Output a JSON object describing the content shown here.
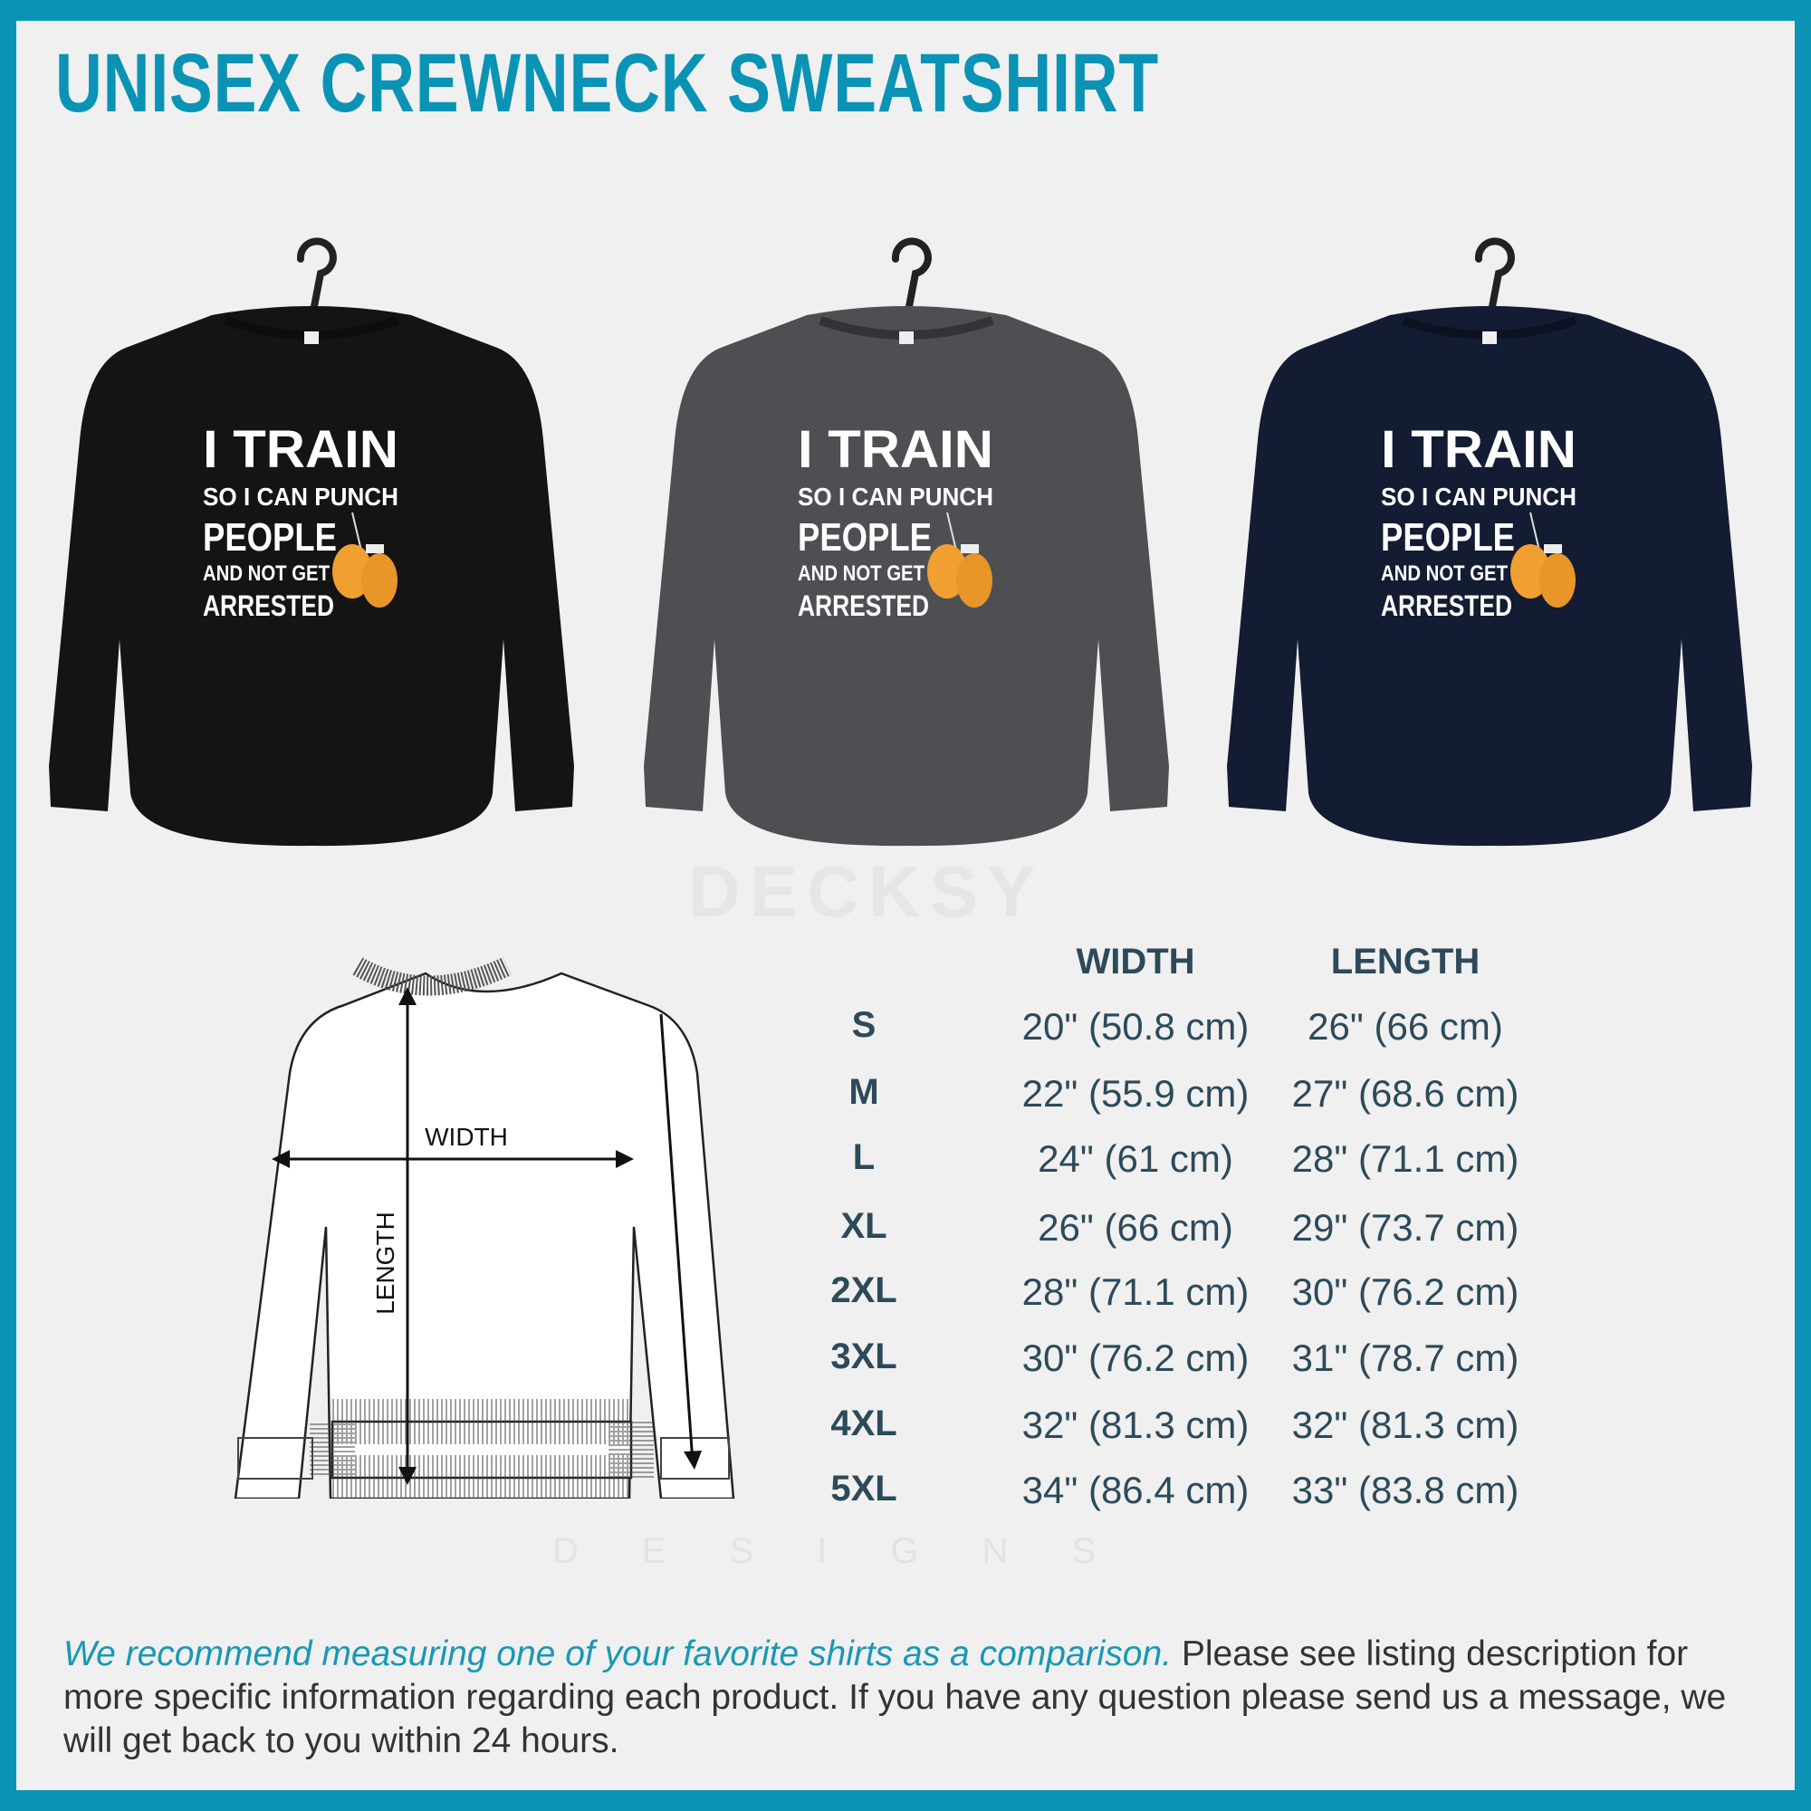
{
  "title": "UNISEX CREWNECK SWEATSHIRT",
  "watermark": {
    "brand": "DECKSY",
    "sub": "DESIGNS"
  },
  "print": {
    "line1": "I TRAIN",
    "line2": "SO I CAN PUNCH",
    "line3": "PEOPLE",
    "line4": "AND NOT GET",
    "line5": "ARRESTED",
    "icon": "boxing-gloves-icon",
    "accent": "#f0a030"
  },
  "products": [
    {
      "name": "black",
      "color": "#141414"
    },
    {
      "name": "dark-heather",
      "color": "#4e4f52"
    },
    {
      "name": "navy",
      "color": "#131c33"
    }
  ],
  "diagram": {
    "width_label": "WIDTH",
    "length_label": "LENGTH"
  },
  "size_table": {
    "headers": [
      "WIDTH",
      "LENGTH"
    ],
    "rows": [
      {
        "size": "S",
        "width": "20\" (50.8 cm)",
        "length": "26\" (66 cm)"
      },
      {
        "size": "M",
        "width": "22\" (55.9 cm)",
        "length": "27\" (68.6 cm)"
      },
      {
        "size": "L",
        "width": "24\" (61 cm)",
        "length": "28\" (71.1 cm)"
      },
      {
        "size": "XL",
        "width": "26\" (66 cm)",
        "length": "29\" (73.7 cm)"
      },
      {
        "size": "2XL",
        "width": "28\" (71.1 cm)",
        "length": "30\" (76.2 cm)"
      },
      {
        "size": "3XL",
        "width": "30\" (76.2 cm)",
        "length": "31\" (78.7 cm)"
      },
      {
        "size": "4XL",
        "width": "32\" (81.3 cm)",
        "length": "32\" (81.3 cm)"
      },
      {
        "size": "5XL",
        "width": "34\" (86.4 cm)",
        "length": "33\" (83.8 cm)"
      }
    ]
  },
  "footer": {
    "highlight": "We recommend measuring one of your favorite shirts as a comparison.",
    "text": " Please see listing description for more specific information regarding each product. If you have any question please send us a message, we will get back to you within 24 hours."
  },
  "colors": {
    "brand": "#0a93b5",
    "table_text": "#2d4a5a",
    "background": "#f0f0f0"
  }
}
